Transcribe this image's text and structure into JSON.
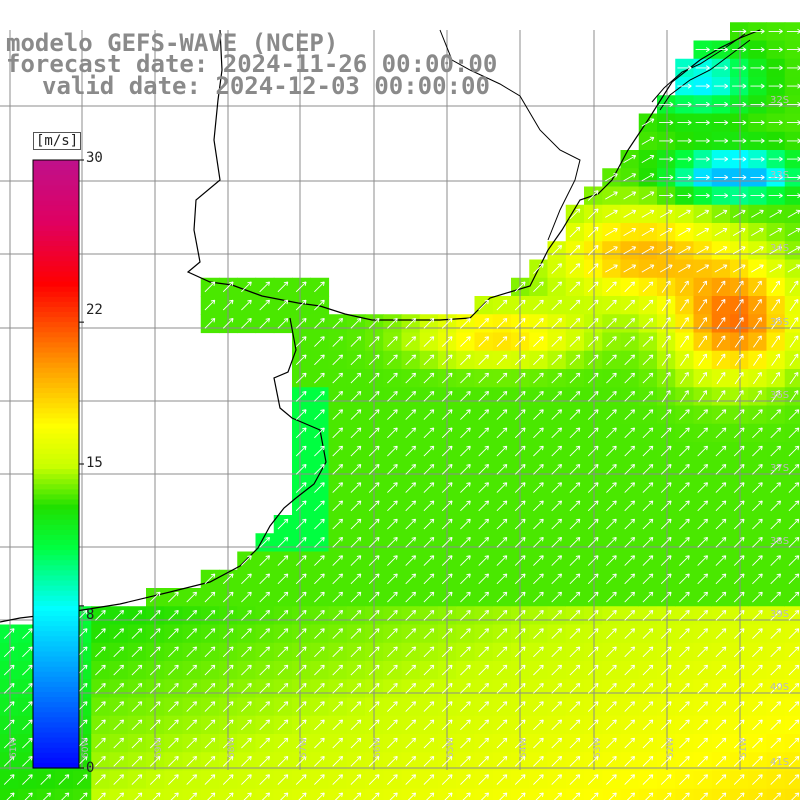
{
  "title": {
    "line1": "modelo GEFS-WAVE (NCEP)",
    "line2": "forecast date: 2024-11-26 00:00:00",
    "line3": "valid date: 2024-12-03 00:00:00"
  },
  "colorbar": {
    "unit": "[m/s]",
    "ticks": [
      "30",
      "22",
      "15",
      "8",
      "0"
    ],
    "tick_values": [
      30,
      22,
      15,
      8,
      0
    ],
    "range": [
      0,
      30
    ],
    "stops": [
      {
        "v": 0,
        "c": "#0000ff"
      },
      {
        "v": 4,
        "c": "#0080ff"
      },
      {
        "v": 8,
        "c": "#00ffff"
      },
      {
        "v": 11,
        "c": "#00ff40"
      },
      {
        "v": 13,
        "c": "#20e000"
      },
      {
        "v": 15,
        "c": "#c8ff00"
      },
      {
        "v": 17,
        "c": "#ffff00"
      },
      {
        "v": 20,
        "c": "#ff9900"
      },
      {
        "v": 24,
        "c": "#ff0000"
      },
      {
        "v": 27,
        "c": "#e00060"
      },
      {
        "v": 30,
        "c": "#c0108a"
      }
    ]
  },
  "map": {
    "lon_labels": [
      "61W",
      "60W",
      "59W",
      "58W",
      "57W",
      "56W",
      "55W",
      "54W",
      "53W",
      "52W",
      "51W"
    ],
    "lat_labels": [
      "32S",
      "33S",
      "34S",
      "35S",
      "36S",
      "37S",
      "38S",
      "39S",
      "40S",
      "41S"
    ],
    "colors": {
      "grid": "#8c8c8c",
      "coast": "#000000",
      "arrow": "#ffffff",
      "label": "#bbbbbb"
    }
  }
}
